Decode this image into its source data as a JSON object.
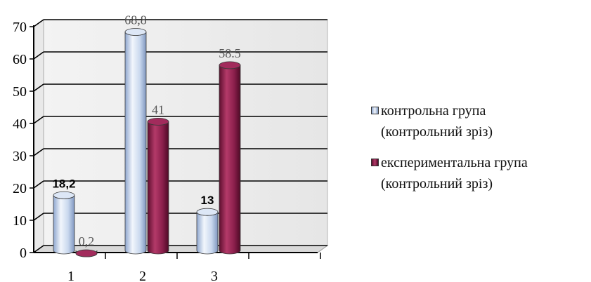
{
  "chart_data": {
    "type": "bar",
    "categories": [
      "1",
      "2",
      "3"
    ],
    "series": [
      {
        "name": "контрольна група (контрольний зріз)",
        "values": [
          18.2,
          68.8,
          13
        ],
        "labels": [
          "18,2",
          "68,8",
          "13"
        ],
        "color": "#c5d6ef"
      },
      {
        "name": "експериментальна група (контрольний зріз)",
        "values": [
          0.2,
          41,
          58.5
        ],
        "labels": [
          "0,2",
          "41",
          "58.5"
        ],
        "color": "#8b1f4c"
      }
    ],
    "y_ticks": [
      "0",
      "10",
      "20",
      "30",
      "40",
      "50",
      "60",
      "70"
    ],
    "ylim": [
      0,
      70
    ],
    "grid": true,
    "legend_position": "right",
    "title": "",
    "xlabel": "",
    "ylabel": ""
  },
  "legend": {
    "items": [
      {
        "line1": "контрольна група",
        "line2": "(контрольний зріз)",
        "color": "#c5d6ef"
      },
      {
        "line1": "експериментальна група",
        "line2": "(контрольний зріз)",
        "color": "#8b1f4c"
      }
    ]
  }
}
